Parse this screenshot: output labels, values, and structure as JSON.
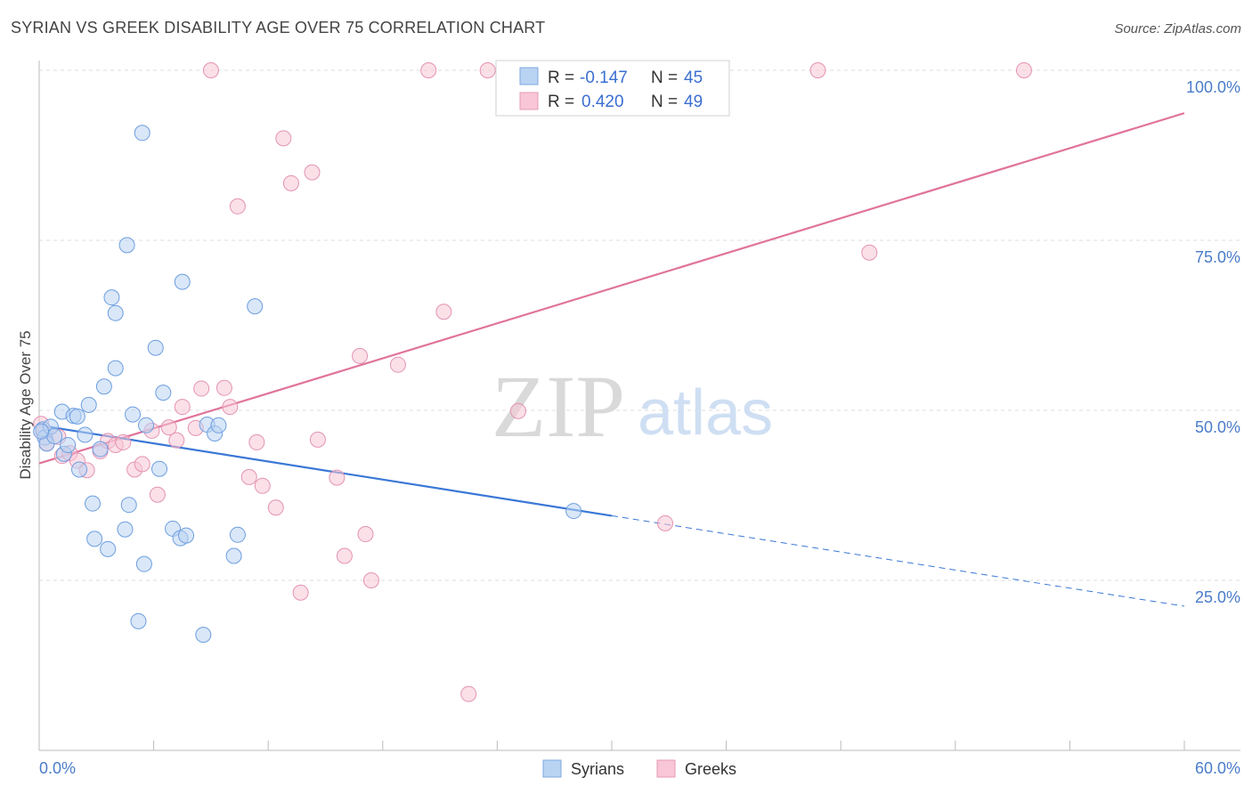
{
  "title": "SYRIAN VS GREEK DISABILITY AGE OVER 75 CORRELATION CHART",
  "source": "Source: ZipAtlas.com",
  "watermark": {
    "zip": "ZIP",
    "atlas": "atlas"
  },
  "colors": {
    "syrians": "#3a78d6",
    "greeks": "#e0739b",
    "syrians_fill": "#b9d3f3",
    "greeks_fill": "#f8c6d6",
    "tick": "#4a7cc9"
  },
  "legend": {
    "rows": [
      {
        "r_label": "R =",
        "r_value": "-0.147",
        "n_label": "N =",
        "n_value": "45"
      },
      {
        "r_label": "R =",
        "r_value": "0.420",
        "n_label": "N =",
        "n_value": "49"
      }
    ]
  },
  "bottom_legend": {
    "syrians": "Syrians",
    "greeks": "Greeks"
  },
  "chart_data": {
    "type": "scatter",
    "title": "SYRIAN VS GREEK DISABILITY AGE OVER 75 CORRELATION CHART",
    "xlabel": "",
    "ylabel": "Disability Age Over 75",
    "xlim": [
      0,
      60
    ],
    "ylim": [
      0,
      105
    ],
    "x_tick_labels": [
      "0.0%",
      "60.0%"
    ],
    "y_ticks": [
      25,
      50,
      75,
      100
    ],
    "y_tick_labels": [
      "25.0%",
      "50.0%",
      "75.0%",
      "100.0%"
    ],
    "grid": true,
    "series": [
      {
        "name": "Syrians",
        "r": -0.147,
        "n": 45,
        "trend": {
          "x0": 0,
          "y0": 47.8,
          "x1": 30,
          "y1": 34.5,
          "dashed_to_x": 60,
          "dashed_to_y": 21.2
        },
        "points": [
          [
            0.2,
            47.2
          ],
          [
            0.3,
            46.0
          ],
          [
            0.4,
            45.1
          ],
          [
            0.6,
            47.6
          ],
          [
            0.8,
            46.2
          ],
          [
            1.2,
            49.8
          ],
          [
            1.3,
            43.6
          ],
          [
            1.5,
            44.9
          ],
          [
            1.8,
            49.2
          ],
          [
            2.0,
            49.1
          ],
          [
            2.1,
            41.3
          ],
          [
            2.4,
            46.4
          ],
          [
            2.6,
            50.8
          ],
          [
            2.8,
            36.3
          ],
          [
            2.9,
            31.1
          ],
          [
            3.2,
            44.3
          ],
          [
            3.4,
            53.5
          ],
          [
            3.6,
            29.6
          ],
          [
            3.8,
            66.6
          ],
          [
            4.0,
            56.2
          ],
          [
            4.0,
            64.3
          ],
          [
            4.5,
            32.5
          ],
          [
            4.6,
            74.3
          ],
          [
            4.7,
            36.1
          ],
          [
            4.9,
            49.4
          ],
          [
            5.2,
            19.0
          ],
          [
            5.4,
            90.8
          ],
          [
            5.5,
            27.4
          ],
          [
            5.6,
            47.8
          ],
          [
            6.1,
            59.2
          ],
          [
            6.3,
            41.4
          ],
          [
            6.5,
            52.6
          ],
          [
            7.0,
            32.6
          ],
          [
            7.4,
            31.2
          ],
          [
            7.5,
            68.9
          ],
          [
            7.7,
            31.6
          ],
          [
            8.6,
            17.0
          ],
          [
            8.8,
            47.9
          ],
          [
            9.2,
            46.6
          ],
          [
            9.4,
            47.8
          ],
          [
            10.2,
            28.6
          ],
          [
            10.4,
            31.7
          ],
          [
            11.3,
            65.3
          ],
          [
            28.0,
            35.2
          ],
          [
            0.1,
            46.9
          ]
        ]
      },
      {
        "name": "Greeks",
        "r": 0.42,
        "n": 49,
        "trend": {
          "x0": 0,
          "y0": 42.2,
          "x1": 60,
          "y1": 93.7
        },
        "points": [
          [
            0.1,
            48.0
          ],
          [
            0.2,
            46.9
          ],
          [
            0.4,
            45.2
          ],
          [
            1.0,
            46.1
          ],
          [
            1.2,
            43.3
          ],
          [
            1.6,
            43.7
          ],
          [
            2.0,
            42.6
          ],
          [
            2.5,
            41.2
          ],
          [
            3.2,
            44.0
          ],
          [
            3.6,
            45.5
          ],
          [
            4.0,
            44.9
          ],
          [
            4.4,
            45.3
          ],
          [
            5.0,
            41.3
          ],
          [
            5.4,
            42.1
          ],
          [
            5.9,
            47.0
          ],
          [
            6.2,
            37.6
          ],
          [
            6.8,
            47.5
          ],
          [
            7.2,
            45.6
          ],
          [
            7.5,
            50.5
          ],
          [
            8.2,
            47.4
          ],
          [
            8.5,
            53.2
          ],
          [
            9.0,
            100.0
          ],
          [
            9.7,
            53.3
          ],
          [
            10.0,
            50.5
          ],
          [
            10.4,
            80.0
          ],
          [
            11.0,
            40.2
          ],
          [
            11.4,
            45.3
          ],
          [
            11.7,
            38.9
          ],
          [
            12.4,
            35.7
          ],
          [
            12.8,
            90.0
          ],
          [
            13.2,
            83.4
          ],
          [
            13.7,
            23.2
          ],
          [
            14.3,
            85.0
          ],
          [
            14.6,
            45.7
          ],
          [
            15.6,
            40.1
          ],
          [
            16.0,
            28.6
          ],
          [
            16.8,
            58.0
          ],
          [
            17.1,
            31.8
          ],
          [
            17.4,
            25.0
          ],
          [
            18.8,
            56.7
          ],
          [
            20.4,
            100.0
          ],
          [
            21.2,
            64.5
          ],
          [
            22.5,
            8.3
          ],
          [
            23.5,
            100.0
          ],
          [
            25.1,
            49.9
          ],
          [
            32.8,
            33.4
          ],
          [
            40.8,
            100.0
          ],
          [
            43.5,
            73.2
          ],
          [
            51.6,
            100.0
          ]
        ]
      }
    ]
  }
}
